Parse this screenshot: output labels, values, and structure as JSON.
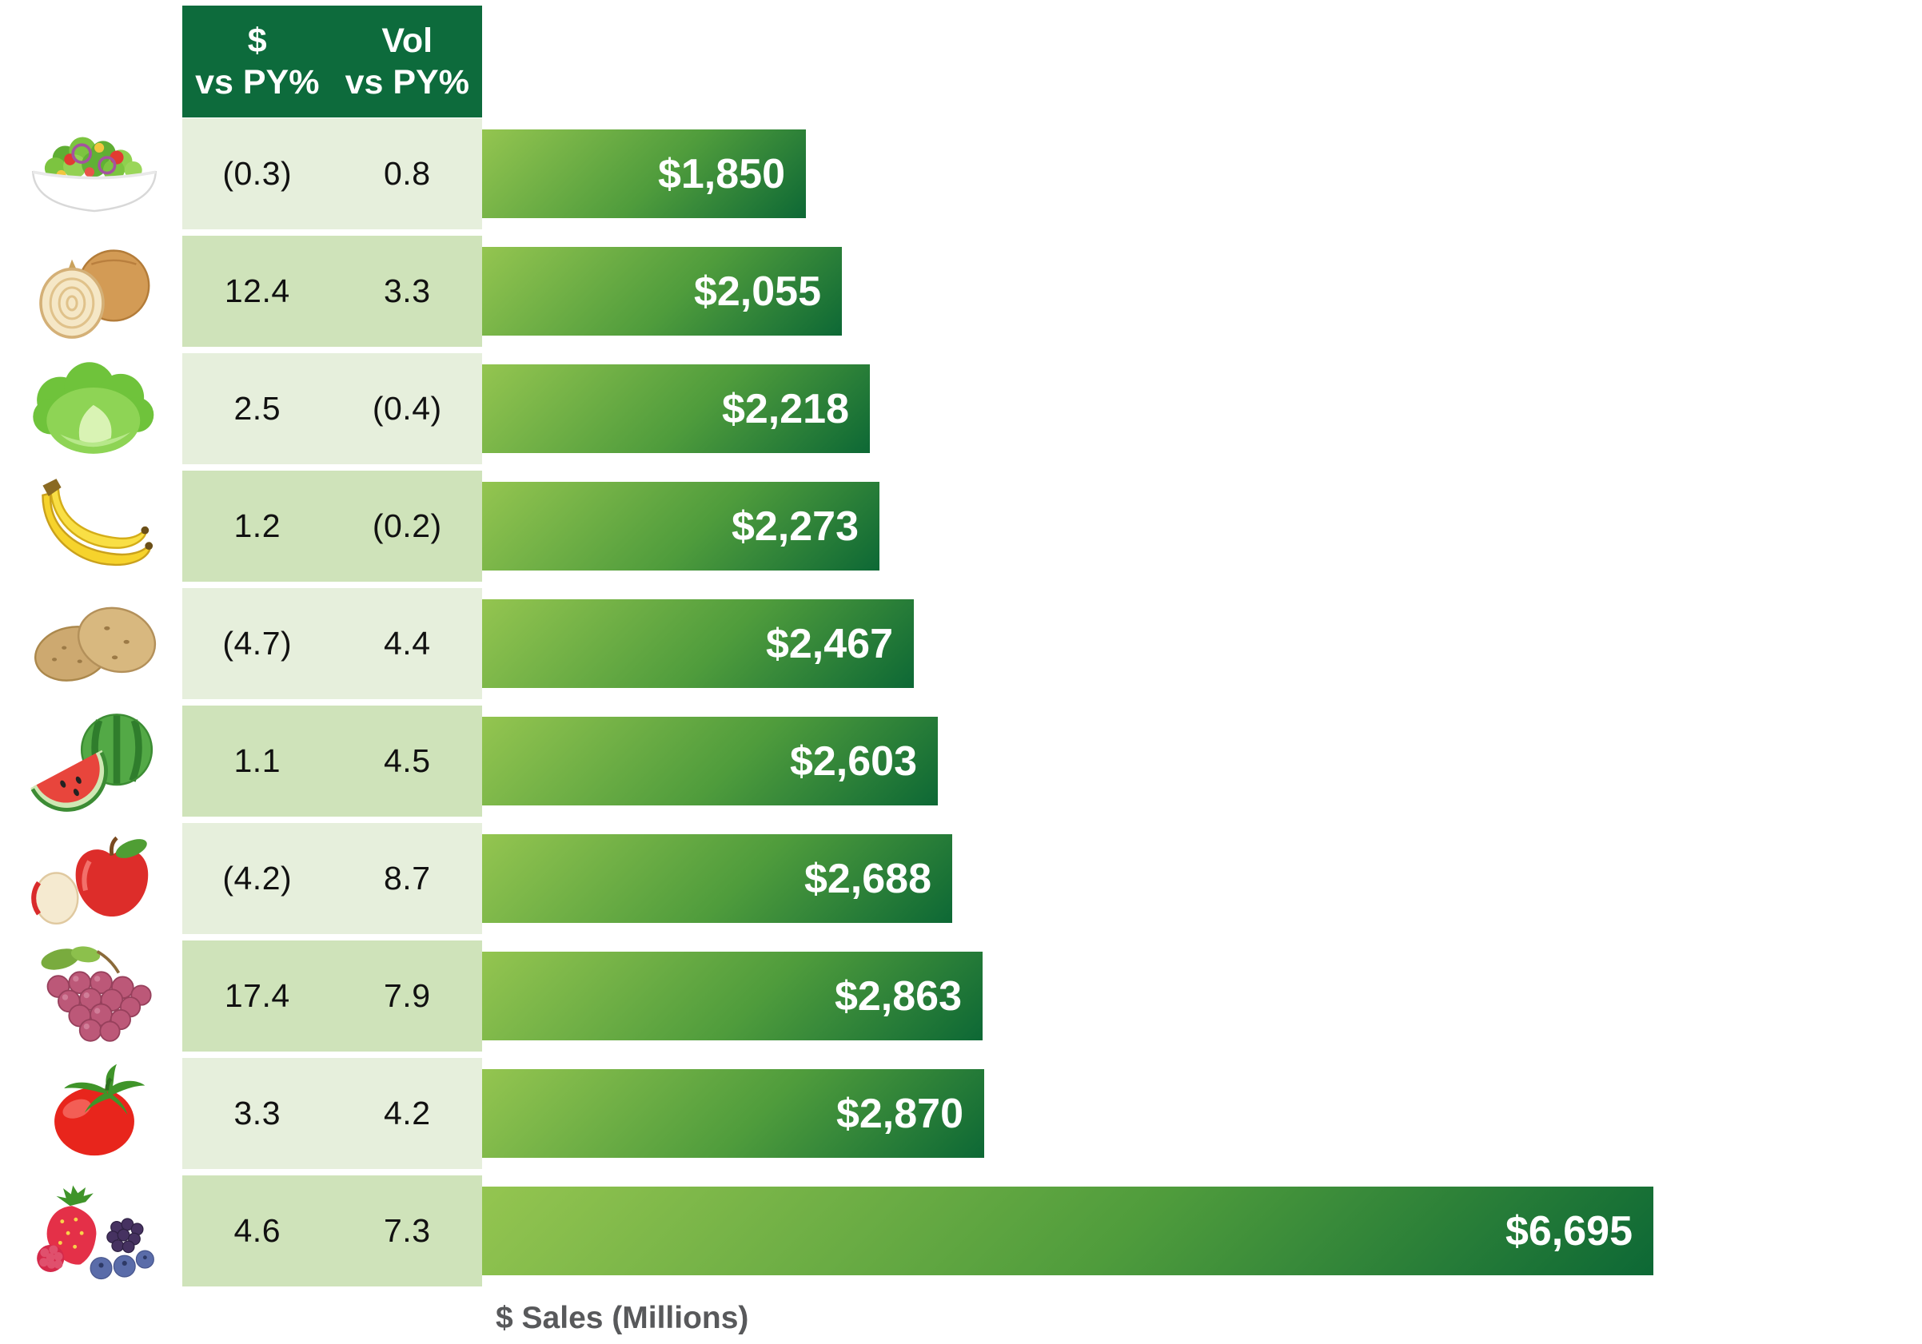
{
  "table": {
    "header": {
      "col1": [
        "$",
        "vs PY%"
      ],
      "col2": [
        "Vol",
        "vs PY%"
      ]
    },
    "rows": [
      {
        "item": "salad",
        "icon": "salad-icon",
        "dollar_vs_py": "(0.3)",
        "vol_vs_py": "0.8"
      },
      {
        "item": "onions",
        "icon": "onion-icon",
        "dollar_vs_py": "12.4",
        "vol_vs_py": "3.3"
      },
      {
        "item": "lettuce",
        "icon": "lettuce-icon",
        "dollar_vs_py": "2.5",
        "vol_vs_py": "(0.4)"
      },
      {
        "item": "bananas",
        "icon": "banana-icon",
        "dollar_vs_py": "1.2",
        "vol_vs_py": "(0.2)"
      },
      {
        "item": "potatoes",
        "icon": "potato-icon",
        "dollar_vs_py": "(4.7)",
        "vol_vs_py": "4.4"
      },
      {
        "item": "watermelon",
        "icon": "watermelon-icon",
        "dollar_vs_py": "1.1",
        "vol_vs_py": "4.5"
      },
      {
        "item": "apples",
        "icon": "apple-icon",
        "dollar_vs_py": "(4.2)",
        "vol_vs_py": "8.7"
      },
      {
        "item": "grapes",
        "icon": "grapes-icon",
        "dollar_vs_py": "17.4",
        "vol_vs_py": "7.9"
      },
      {
        "item": "tomatoes",
        "icon": "tomato-icon",
        "dollar_vs_py": "3.3",
        "vol_vs_py": "4.2"
      },
      {
        "item": "berries",
        "icon": "berries-icon",
        "dollar_vs_py": "4.6",
        "vol_vs_py": "7.3"
      }
    ]
  },
  "chart_data": {
    "type": "bar",
    "orientation": "horizontal",
    "categories": [
      "salad",
      "onions",
      "lettuce",
      "bananas",
      "potatoes",
      "watermelon",
      "apples",
      "grapes",
      "tomatoes",
      "berries"
    ],
    "values": [
      1850,
      2055,
      2218,
      2273,
      2467,
      2603,
      2688,
      2863,
      2870,
      6695
    ],
    "bar_labels": [
      "$1,850",
      "$2,055",
      "$2,218",
      "$2,273",
      "$2,467",
      "$2,603",
      "$2,688",
      "$2,863",
      "$2,870",
      "$6,695"
    ],
    "xlabel": "$ Sales (Millions)",
    "xlim": [
      0,
      6695
    ],
    "grid": false,
    "legend": false
  },
  "colors": {
    "header_bg": "#0d6b3c",
    "row_light": "#e6efdc",
    "row_dark": "#cfe3ba",
    "bar_start": "#94c550",
    "bar_end": "#0d6835",
    "bar_label": "#ffffff",
    "table_text": "#111111",
    "header_text": "#ffffff",
    "axis_label": "#58595b"
  }
}
